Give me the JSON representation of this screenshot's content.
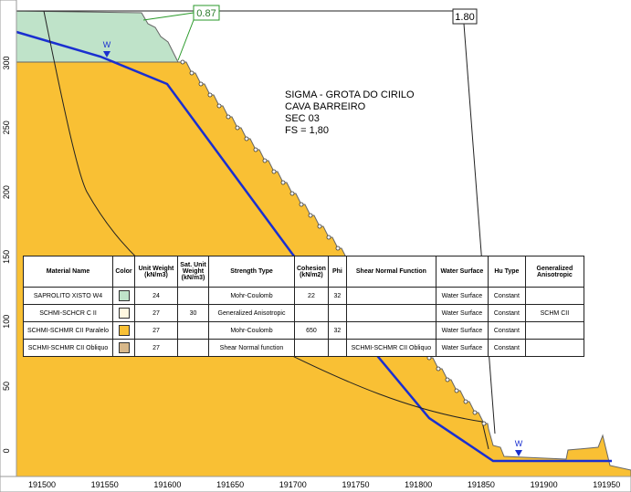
{
  "annotations": {
    "lines": [
      "SIGMA - GROTA DO CIRILO",
      "CAVA BARREIRO",
      "SEC 03",
      "FS = 1,80"
    ]
  },
  "safety_factors": {
    "critical": "0.87",
    "selected": "1.80"
  },
  "water_marker": "W",
  "axes": {
    "x_labels": [
      191500,
      191550,
      191600,
      191650,
      191700,
      191750,
      191800,
      191850,
      191900,
      191950
    ],
    "y_labels": [
      300,
      250,
      200,
      150,
      100,
      50,
      0
    ]
  },
  "table": {
    "headers": [
      "Material Name",
      "Color",
      "Unit Weight (kN/m3)",
      "Sat. Unit Weight (kN/m3)",
      "Strength Type",
      "Cohesion (kN/m2)",
      "Phi",
      "Shear Normal Function",
      "Water Surface",
      "Hu Type",
      "Generalized Anisotropic"
    ],
    "swatches": [
      "#bfe3c9",
      "#fff8e0",
      "#f9c034",
      "#d8b88a"
    ],
    "rows": [
      [
        "SAPROLITO XISTO W4",
        null,
        24,
        null,
        "Mohr-Coulomb",
        22,
        32,
        null,
        "Water Surface",
        "Constant",
        null
      ],
      [
        "SCHMI-SCHCR C II",
        null,
        27,
        30,
        "Generalized Anisotropic",
        null,
        null,
        null,
        "Water Surface",
        "Constant",
        "SCHM CII"
      ],
      [
        "SCHMI-SCHMR CII Paralelo",
        null,
        27,
        null,
        "Mohr-Coulomb",
        650,
        32,
        null,
        "Water Surface",
        "Constant",
        null
      ],
      [
        "SCHMI-SCHMR CII Obliquo",
        null,
        27,
        null,
        "Shear Normal function",
        null,
        null,
        "SCHMI-SCHMR CII Obliquo",
        "Water Surface",
        "Constant",
        null
      ]
    ]
  }
}
